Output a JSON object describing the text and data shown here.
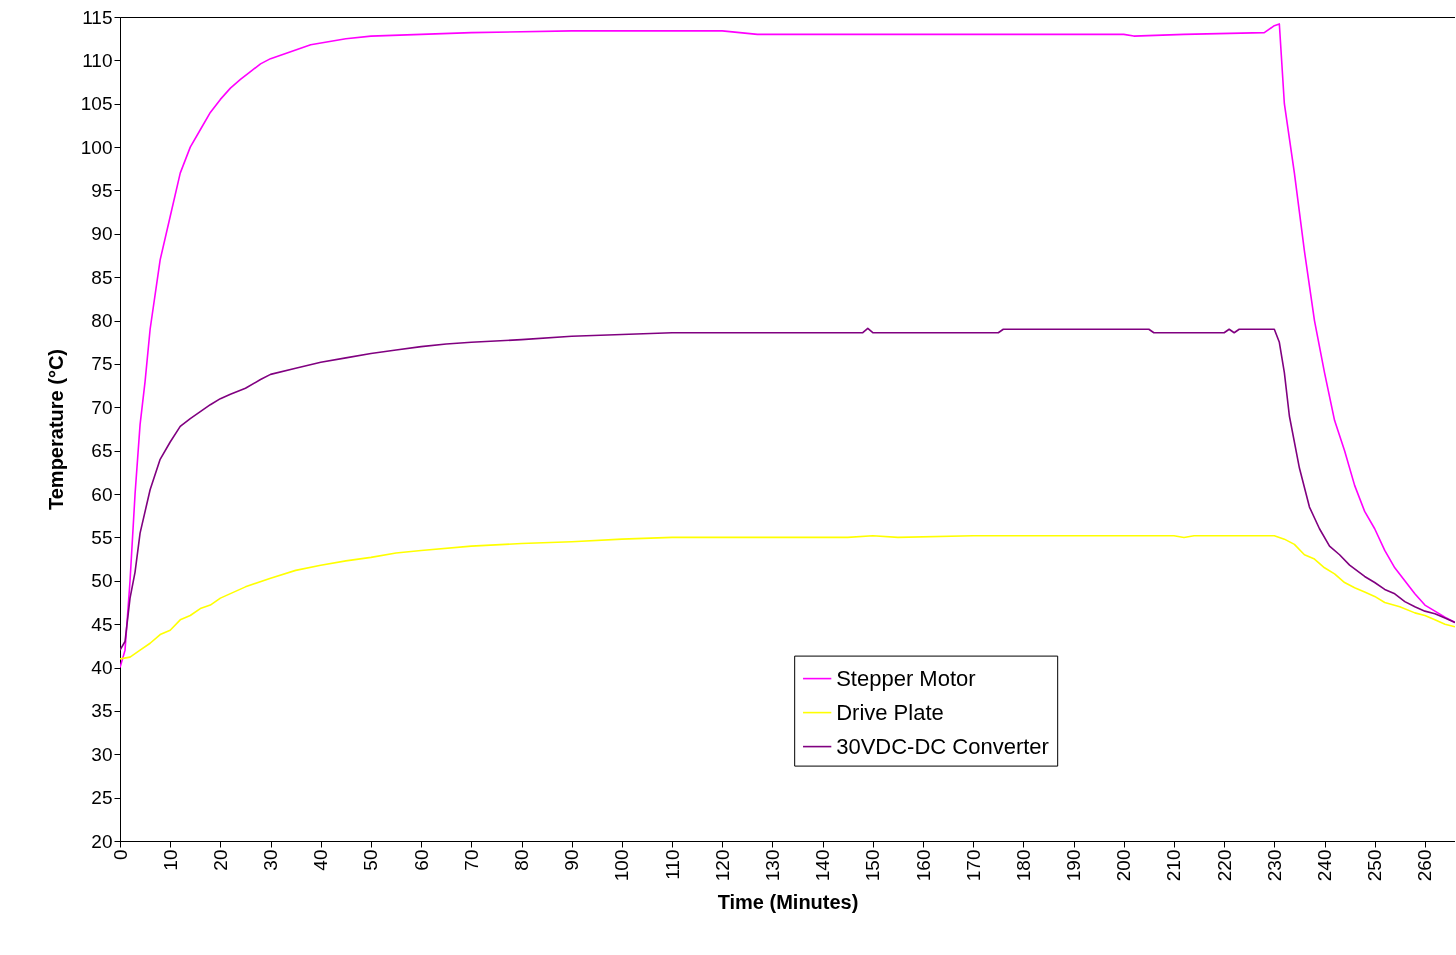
{
  "chart_data": {
    "type": "line",
    "xlabel": "Time (Minutes)",
    "ylabel": "Temperature (°C)",
    "xlim": [
      0,
      266
    ],
    "xticks": [
      0,
      10,
      20,
      30,
      40,
      50,
      60,
      70,
      80,
      90,
      100,
      110,
      120,
      130,
      140,
      150,
      160,
      170,
      180,
      190,
      200,
      210,
      220,
      230,
      240,
      250,
      260
    ],
    "ylim": [
      20,
      115
    ],
    "yticks": [
      20,
      25,
      30,
      35,
      40,
      45,
      50,
      55,
      60,
      65,
      70,
      75,
      80,
      85,
      90,
      95,
      100,
      105,
      110,
      115
    ],
    "grid": false,
    "legend": "bottom right",
    "marker": "none",
    "line_style": "solid",
    "series": [
      {
        "name": "Stepper Motor",
        "color": "#ff00ff",
        "x": [
          0,
          1,
          2,
          3,
          4,
          5,
          6,
          8,
          10,
          12,
          14,
          16,
          18,
          20,
          22,
          24,
          26,
          28,
          30,
          35,
          38,
          45,
          50,
          60,
          70,
          90,
          120,
          127,
          150,
          200,
          202,
          212,
          228,
          230,
          231,
          232,
          234,
          236,
          238,
          240,
          242,
          244,
          246,
          248,
          250,
          252,
          254,
          256,
          258,
          260,
          262,
          264,
          266
        ],
        "values": [
          40,
          42,
          50,
          60,
          68,
          73,
          79,
          87,
          92,
          97,
          100,
          102,
          104,
          105.5,
          106.8,
          107.8,
          108.7,
          109.6,
          110.2,
          111.2,
          111.8,
          112.5,
          112.8,
          113,
          113.2,
          113.4,
          113.4,
          113,
          113,
          113,
          112.8,
          113,
          113.2,
          114,
          114.2,
          105,
          97,
          88,
          80,
          74,
          68.5,
          65,
          61,
          58,
          56,
          53.5,
          51.5,
          50,
          48.5,
          47.2,
          46.5,
          45.8,
          45.2
        ]
      },
      {
        "name": "Drive Plate",
        "color": "#ffff00",
        "x": [
          0,
          2,
          4,
          6,
          8,
          10,
          12,
          14,
          16,
          18,
          20,
          25,
          30,
          35,
          40,
          45,
          50,
          55,
          60,
          70,
          80,
          90,
          100,
          110,
          145,
          150,
          155,
          170,
          210,
          212,
          214,
          230,
          232,
          234,
          236,
          238,
          240,
          242,
          244,
          246,
          248,
          250,
          252,
          255,
          258,
          260,
          262,
          264,
          266
        ],
        "values": [
          41,
          41.2,
          42,
          42.8,
          43.8,
          44.3,
          45.5,
          46,
          46.8,
          47.2,
          48,
          49.3,
          50.3,
          51.2,
          51.8,
          52.3,
          52.7,
          53.2,
          53.5,
          54,
          54.3,
          54.5,
          54.8,
          55,
          55,
          55.2,
          55,
          55.2,
          55.2,
          55,
          55.2,
          55.2,
          54.8,
          54.2,
          53,
          52.5,
          51.5,
          50.8,
          49.8,
          49.2,
          48.7,
          48.2,
          47.5,
          47,
          46.3,
          46,
          45.5,
          45,
          44.7
        ]
      },
      {
        "name": "30VDC-DC Converter",
        "color": "#800080",
        "x": [
          0,
          1,
          2,
          3,
          4,
          6,
          8,
          10,
          12,
          14,
          16,
          18,
          20,
          22,
          25,
          28,
          30,
          35,
          40,
          45,
          50,
          55,
          60,
          65,
          70,
          80,
          90,
          100,
          110,
          148,
          149,
          150,
          175,
          176,
          205,
          206,
          220,
          221,
          222,
          223,
          230,
          231,
          232,
          233,
          235,
          237,
          239,
          241,
          243,
          245,
          248,
          250,
          252,
          254,
          256,
          258,
          260,
          262,
          264,
          266
        ],
        "values": [
          42,
          43,
          48,
          51,
          55.5,
          60.5,
          64,
          66,
          67.8,
          68.7,
          69.5,
          70.3,
          71,
          71.5,
          72.2,
          73.2,
          73.8,
          74.5,
          75.2,
          75.7,
          76.2,
          76.6,
          77,
          77.3,
          77.5,
          77.8,
          78.2,
          78.4,
          78.6,
          78.6,
          79.1,
          78.6,
          78.6,
          79,
          79,
          78.6,
          78.6,
          79,
          78.6,
          79,
          79,
          77.5,
          74,
          69,
          63,
          58.5,
          56,
          54,
          53,
          51.8,
          50.5,
          49.8,
          49,
          48.5,
          47.6,
          47,
          46.5,
          46.2,
          45.7,
          45.2
        ]
      }
    ]
  }
}
